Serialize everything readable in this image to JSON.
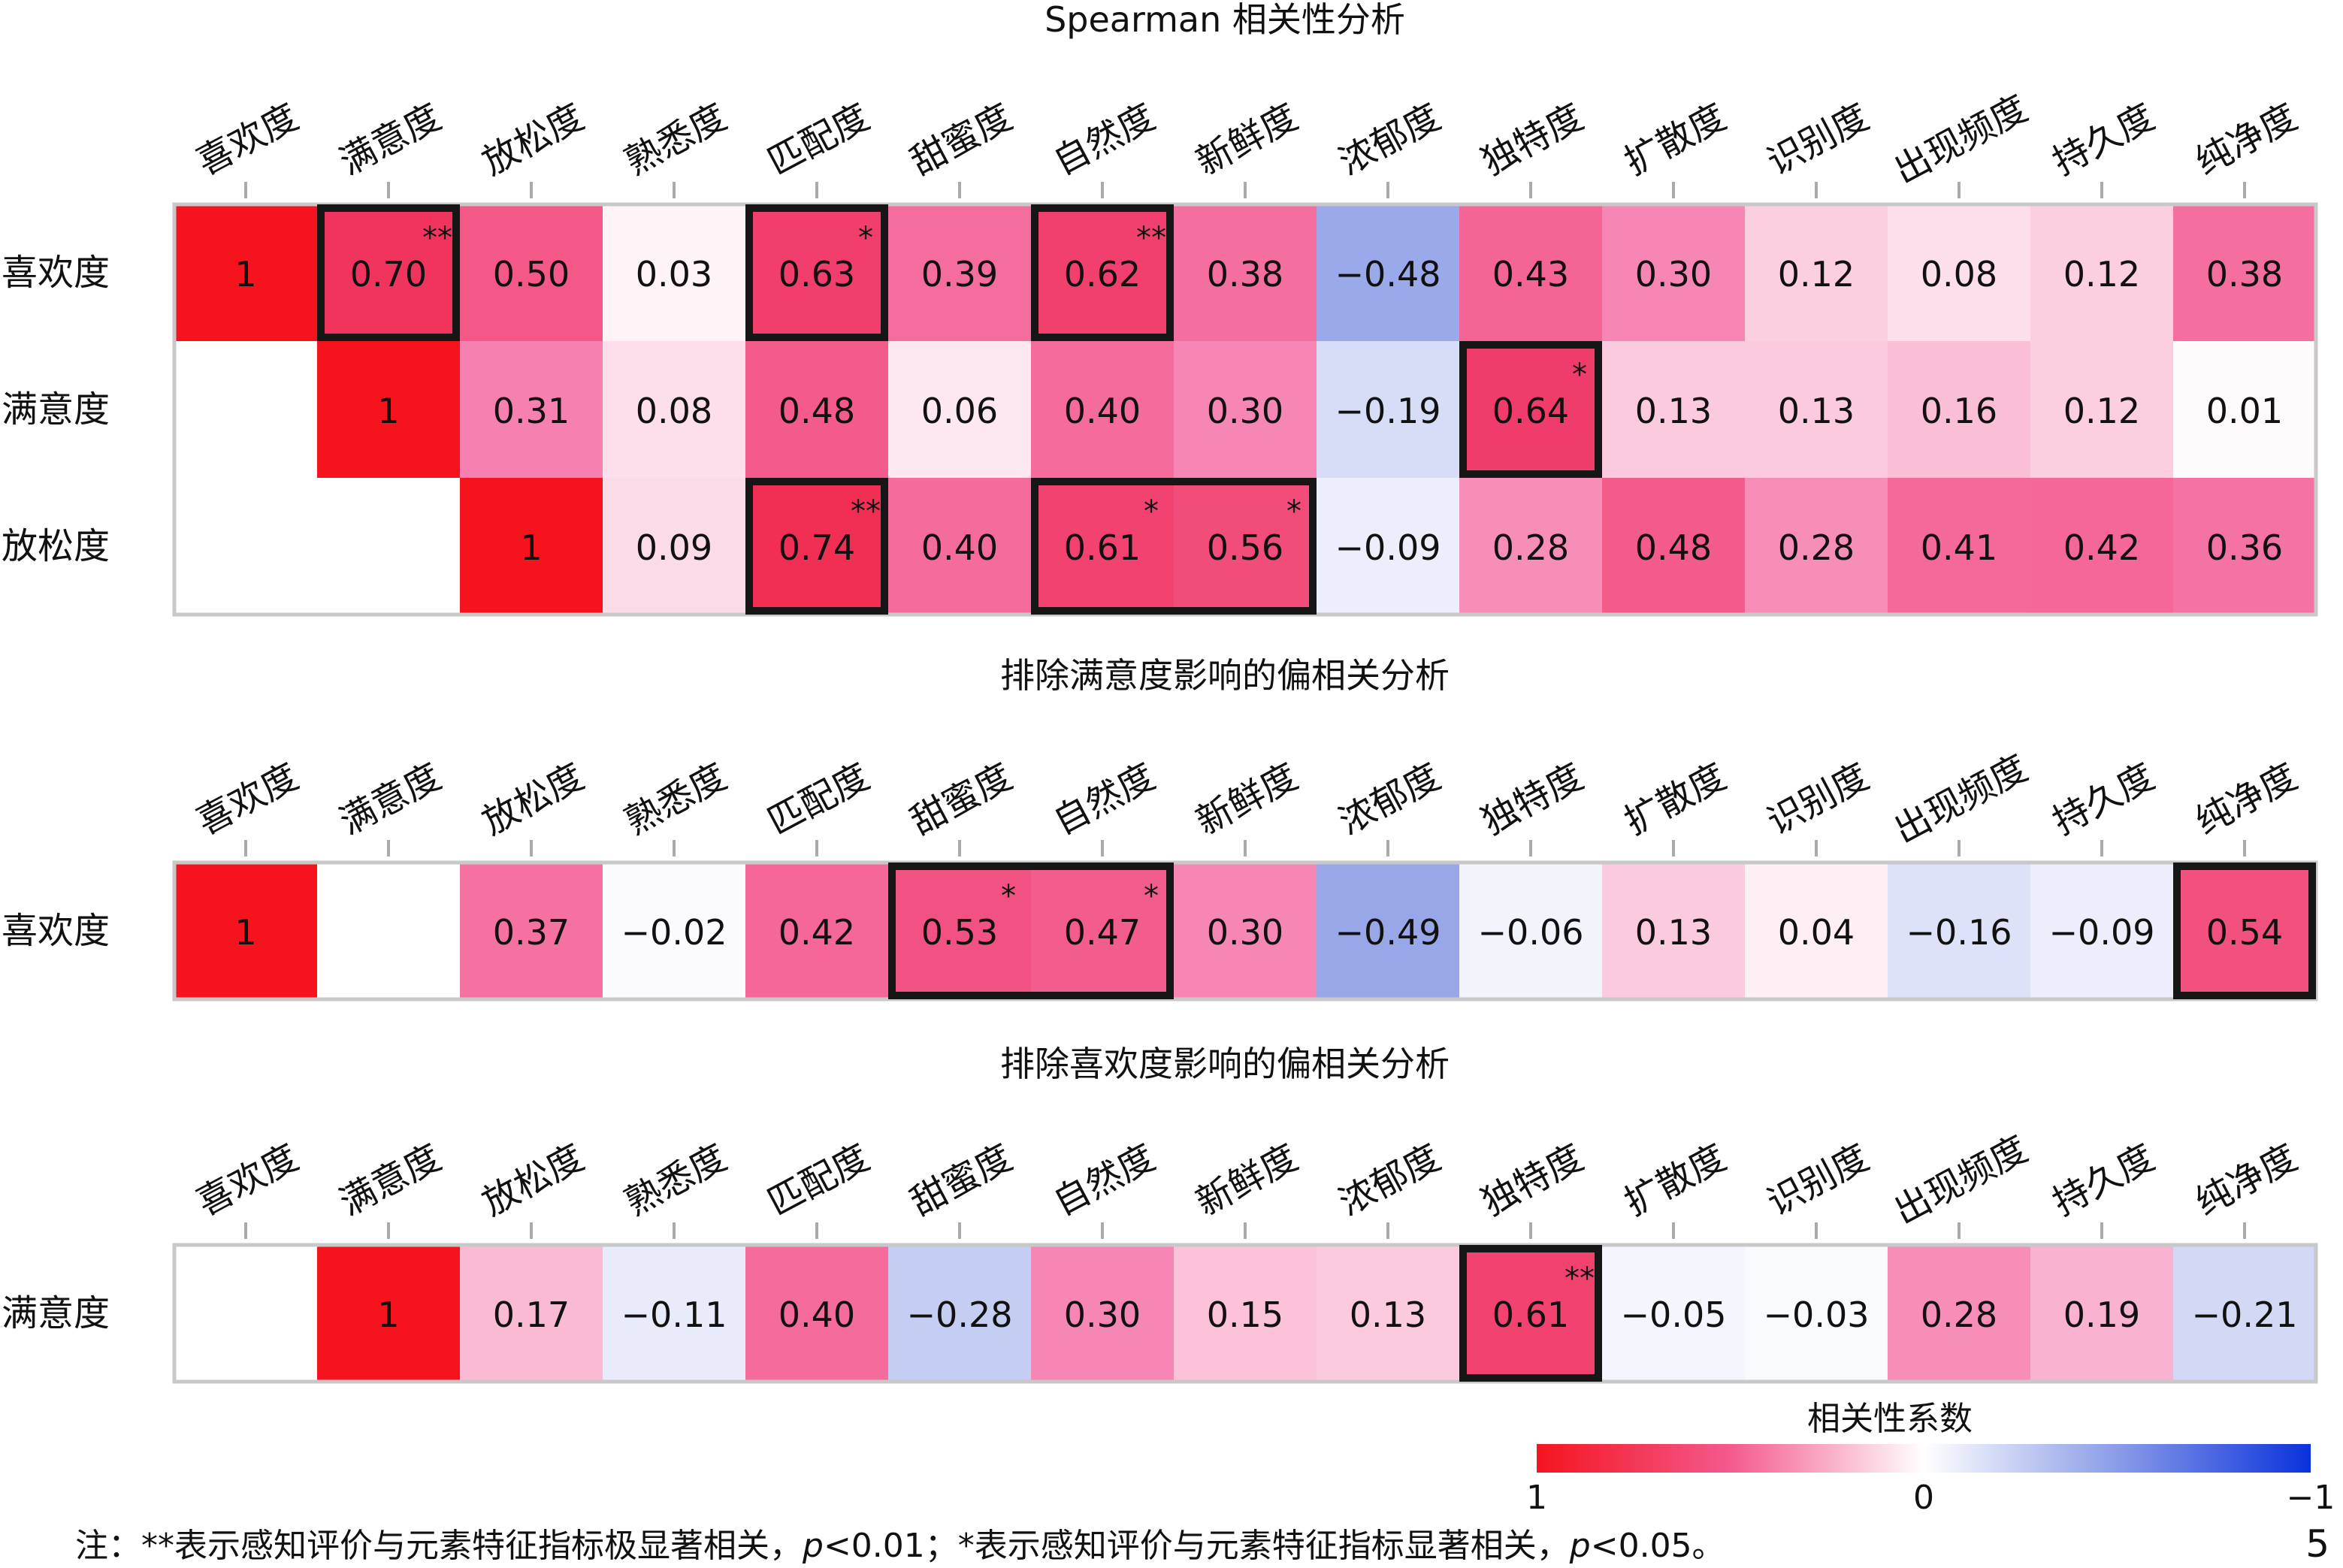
{
  "chart_data": {
    "type": "heatmap",
    "columns": [
      "喜欢度",
      "满意度",
      "放松度",
      "熟悉度",
      "匹配度",
      "甜蜜度",
      "自然度",
      "新鲜度",
      "浓郁度",
      "独特度",
      "扩散度",
      "识别度",
      "出现频度",
      "持久度",
      "纯净度"
    ],
    "panels": [
      {
        "title": "Spearman 相关性分析",
        "rows": [
          {
            "label": "喜欢度",
            "values": [
              1,
              0.7,
              0.5,
              0.03,
              0.63,
              0.39,
              0.62,
              0.38,
              -0.48,
              0.43,
              0.3,
              0.12,
              0.08,
              0.12,
              0.38
            ],
            "text": [
              "1",
              "0.70",
              "0.50",
              "0.03",
              "0.63",
              "0.39",
              "0.62",
              "0.38",
              "−0.48",
              "0.43",
              "0.30",
              "0.12",
              "0.08",
              "0.12",
              "0.38"
            ],
            "stars": [
              "",
              "**",
              "",
              "",
              "*",
              "",
              "**",
              "",
              "",
              "",
              "",
              "",
              "",
              "",
              ""
            ]
          },
          {
            "label": "满意度",
            "values": [
              null,
              1,
              0.31,
              0.08,
              0.48,
              0.06,
              0.4,
              0.3,
              -0.19,
              0.64,
              0.13,
              0.13,
              0.16,
              0.12,
              0.01
            ],
            "text": [
              "",
              "1",
              "0.31",
              "0.08",
              "0.48",
              "0.06",
              "0.40",
              "0.30",
              "−0.19",
              "0.64",
              "0.13",
              "0.13",
              "0.16",
              "0.12",
              "0.01"
            ],
            "stars": [
              "",
              "",
              "",
              "",
              "",
              "",
              "",
              "",
              "",
              "*",
              "",
              "",
              "",
              "",
              ""
            ]
          },
          {
            "label": "放松度",
            "values": [
              null,
              null,
              1,
              0.09,
              0.74,
              0.4,
              0.61,
              0.56,
              -0.09,
              0.28,
              0.48,
              0.28,
              0.41,
              0.42,
              0.36
            ],
            "text": [
              "",
              "",
              "1",
              "0.09",
              "0.74",
              "0.40",
              "0.61",
              "0.56",
              "−0.09",
              "0.28",
              "0.48",
              "0.28",
              "0.41",
              "0.42",
              "0.36"
            ],
            "stars": [
              "",
              "",
              "",
              "",
              "**",
              "",
              "*",
              "*",
              "",
              "",
              "",
              "",
              "",
              "",
              ""
            ]
          }
        ],
        "boxes": [
          [
            0,
            1,
            0,
            1
          ],
          [
            0,
            4,
            0,
            4
          ],
          [
            0,
            6,
            0,
            6
          ],
          [
            1,
            9,
            1,
            9
          ],
          [
            2,
            4,
            2,
            4
          ],
          [
            2,
            6,
            2,
            7
          ]
        ]
      },
      {
        "title": "排除满意度影响的偏相关分析",
        "rows": [
          {
            "label": "喜欢度",
            "values": [
              1,
              null,
              0.37,
              -0.02,
              0.42,
              0.53,
              0.47,
              0.3,
              -0.49,
              -0.06,
              0.13,
              0.04,
              -0.16,
              -0.09,
              0.54
            ],
            "text": [
              "1",
              "",
              "0.37",
              "−0.02",
              "0.42",
              "0.53",
              "0.47",
              "0.30",
              "−0.49",
              "−0.06",
              "0.13",
              "0.04",
              "−0.16",
              "−0.09",
              "0.54"
            ],
            "stars": [
              "",
              "",
              "",
              "",
              "",
              "*",
              "*",
              "",
              "",
              "",
              "",
              "",
              "",
              "",
              ""
            ]
          }
        ],
        "boxes": [
          [
            0,
            5,
            0,
            6
          ],
          [
            0,
            14,
            0,
            14
          ]
        ]
      },
      {
        "title": "排除喜欢度影响的偏相关分析",
        "rows": [
          {
            "label": "满意度",
            "values": [
              null,
              1,
              0.17,
              -0.11,
              0.4,
              -0.28,
              0.3,
              0.15,
              0.13,
              0.61,
              -0.05,
              -0.03,
              0.28,
              0.19,
              -0.21
            ],
            "text": [
              "",
              "1",
              "0.17",
              "−0.11",
              "0.40",
              "−0.28",
              "0.30",
              "0.15",
              "0.13",
              "0.61",
              "−0.05",
              "−0.03",
              "0.28",
              "0.19",
              "−0.21"
            ],
            "stars": [
              "",
              "",
              "",
              "",
              "",
              "",
              "",
              "",
              "",
              "**",
              "",
              "",
              "",
              "",
              ""
            ]
          }
        ],
        "boxes": [
          [
            0,
            9,
            0,
            9
          ]
        ]
      }
    ],
    "legend": {
      "title": "相关性系数",
      "tick_labels": [
        "1",
        "0",
        "−1"
      ],
      "colors": {
        "pos": "#f5141e",
        "mid": "#ffffff",
        "neg": "#0a32dc"
      }
    },
    "footnote": {
      "prefix": "注：**表示感知评价与元素特征指标极显著相关，",
      "p1": "p",
      "t1": "<0.01；*表示感知评价与元素特征指标显著相关，",
      "p2": "p",
      "t2": "<0.05。"
    },
    "page_number": "5"
  }
}
